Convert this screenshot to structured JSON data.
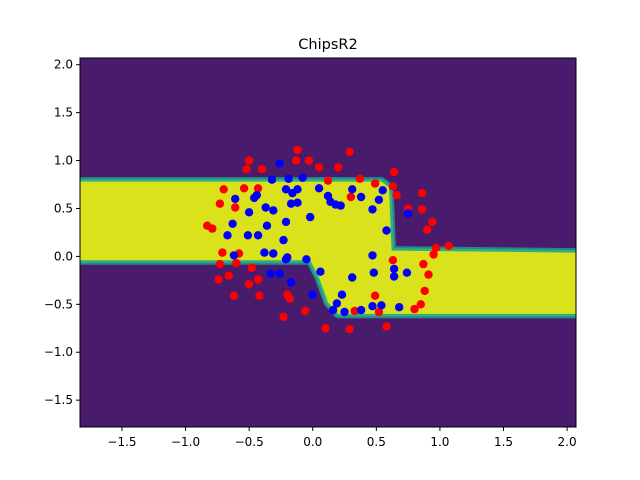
{
  "chart_data": {
    "type": "scatter",
    "title": "ChipsR2",
    "xlabel": "",
    "ylabel": "",
    "xlim": [
      -1.83,
      2.07
    ],
    "ylim": [
      -1.78,
      2.07
    ],
    "xticks": [
      "−1.5",
      "−1.0",
      "−0.5",
      "0.0",
      "0.5",
      "1.0",
      "1.5",
      "2.0"
    ],
    "xtick_values": [
      -1.5,
      -1.0,
      -0.5,
      0.0,
      0.5,
      1.0,
      1.5,
      2.0
    ],
    "yticks": [
      "−1.5",
      "−1.0",
      "−0.5",
      "0.0",
      "0.5",
      "1.0",
      "1.5",
      "2.0"
    ],
    "ytick_values": [
      -1.5,
      -1.0,
      -0.5,
      0.0,
      0.5,
      1.0,
      1.5,
      2.0
    ],
    "grid": false,
    "colors": {
      "background_region": "#481b6d",
      "decision_region": "#d9e21a",
      "edge_band_1": "#2db17e",
      "edge_band_2": "#28878e",
      "class_red": "#ff0000",
      "class_blue": "#0000ff"
    },
    "decision_region_polygon": [
      [
        -1.83,
        0.78
      ],
      [
        0.54,
        0.78
      ],
      [
        0.6,
        0.72
      ],
      [
        0.62,
        0.06
      ],
      [
        2.07,
        0.04
      ],
      [
        2.07,
        -0.6
      ],
      [
        0.2,
        -0.6
      ],
      [
        0.12,
        -0.48
      ],
      [
        0.05,
        -0.22
      ],
      [
        -0.02,
        -0.04
      ],
      [
        -1.83,
        -0.04
      ]
    ],
    "series": [
      {
        "color": "red",
        "points": [
          [
            -0.12,
            1.11
          ],
          [
            -0.5,
            1.0
          ],
          [
            -0.03,
            1.0
          ],
          [
            0.29,
            1.09
          ],
          [
            -0.13,
            1.0
          ],
          [
            -0.52,
            0.91
          ],
          [
            -0.4,
            0.91
          ],
          [
            0.05,
            0.93
          ],
          [
            0.2,
            0.93
          ],
          [
            0.64,
            0.88
          ],
          [
            0.37,
            0.81
          ],
          [
            0.12,
            0.79
          ],
          [
            0.49,
            0.76
          ],
          [
            0.63,
            0.73
          ],
          [
            -0.7,
            0.7
          ],
          [
            -0.54,
            0.71
          ],
          [
            -0.43,
            0.71
          ],
          [
            0.66,
            0.64
          ],
          [
            0.86,
            0.66
          ],
          [
            0.3,
            0.62
          ],
          [
            -0.73,
            0.55
          ],
          [
            -0.61,
            0.51
          ],
          [
            0.75,
            0.5
          ],
          [
            0.86,
            0.49
          ],
          [
            0.94,
            0.36
          ],
          [
            -0.83,
            0.32
          ],
          [
            -0.79,
            0.29
          ],
          [
            0.9,
            0.28
          ],
          [
            1.07,
            0.11
          ],
          [
            0.97,
            0.09
          ],
          [
            0.95,
            0.02
          ],
          [
            -0.71,
            0.04
          ],
          [
            -0.58,
            0.03
          ],
          [
            0.63,
            -0.04
          ],
          [
            -0.73,
            -0.08
          ],
          [
            -0.6,
            -0.07
          ],
          [
            -0.48,
            -0.12
          ],
          [
            0.87,
            -0.08
          ],
          [
            -0.66,
            -0.2
          ],
          [
            0.91,
            -0.19
          ],
          [
            -0.74,
            -0.24
          ],
          [
            -0.43,
            -0.24
          ],
          [
            -0.5,
            -0.29
          ],
          [
            0.88,
            -0.36
          ],
          [
            -0.62,
            -0.41
          ],
          [
            -0.42,
            -0.41
          ],
          [
            -0.2,
            -0.4
          ],
          [
            -0.18,
            -0.44
          ],
          [
            0.49,
            -0.41
          ],
          [
            0.85,
            -0.5
          ],
          [
            0.8,
            -0.55
          ],
          [
            -0.06,
            -0.57
          ],
          [
            0.33,
            -0.57
          ],
          [
            0.52,
            -0.58
          ],
          [
            0.1,
            -0.75
          ],
          [
            0.29,
            -0.76
          ],
          [
            0.58,
            -0.73
          ],
          [
            -0.23,
            -0.63
          ]
        ]
      },
      {
        "color": "blue",
        "points": [
          [
            -0.26,
            0.97
          ],
          [
            -0.32,
            0.8
          ],
          [
            -0.19,
            0.81
          ],
          [
            -0.08,
            0.82
          ],
          [
            0.05,
            0.71
          ],
          [
            -0.21,
            0.7
          ],
          [
            -0.12,
            0.7
          ],
          [
            -0.16,
            0.66
          ],
          [
            -0.44,
            0.64
          ],
          [
            0.12,
            0.63
          ],
          [
            0.31,
            0.7
          ],
          [
            0.55,
            0.69
          ],
          [
            0.38,
            0.62
          ],
          [
            0.52,
            0.59
          ],
          [
            -0.61,
            0.6
          ],
          [
            -0.46,
            0.61
          ],
          [
            0.14,
            0.57
          ],
          [
            0.18,
            0.54
          ],
          [
            0.22,
            0.53
          ],
          [
            -0.17,
            0.55
          ],
          [
            -0.12,
            0.56
          ],
          [
            -0.37,
            0.51
          ],
          [
            -0.31,
            0.48
          ],
          [
            0.47,
            0.49
          ],
          [
            0.75,
            0.45
          ],
          [
            -0.5,
            0.46
          ],
          [
            -0.02,
            0.41
          ],
          [
            -0.21,
            0.36
          ],
          [
            -0.36,
            0.32
          ],
          [
            -0.63,
            0.34
          ],
          [
            -0.67,
            0.22
          ],
          [
            -0.51,
            0.22
          ],
          [
            -0.43,
            0.22
          ],
          [
            0.58,
            0.27
          ],
          [
            -0.23,
            0.17
          ],
          [
            -0.38,
            0.04
          ],
          [
            -0.31,
            0.03
          ],
          [
            -0.2,
            -0.01
          ],
          [
            -0.21,
            -0.03
          ],
          [
            -0.05,
            -0.03
          ],
          [
            -0.62,
            0.01
          ],
          [
            0.47,
            0.01
          ],
          [
            0.64,
            -0.13
          ],
          [
            -0.33,
            -0.18
          ],
          [
            -0.26,
            -0.18
          ],
          [
            0.06,
            -0.16
          ],
          [
            0.48,
            -0.17
          ],
          [
            0.64,
            -0.21
          ],
          [
            0.74,
            -0.17
          ],
          [
            0.31,
            -0.22
          ],
          [
            -0.17,
            -0.27
          ],
          [
            0.0,
            -0.4
          ],
          [
            0.23,
            -0.4
          ],
          [
            0.19,
            -0.49
          ],
          [
            0.47,
            -0.52
          ],
          [
            0.54,
            -0.51
          ],
          [
            0.68,
            -0.53
          ],
          [
            0.38,
            -0.56
          ],
          [
            0.16,
            -0.56
          ],
          [
            0.25,
            -0.58
          ]
        ]
      }
    ]
  }
}
